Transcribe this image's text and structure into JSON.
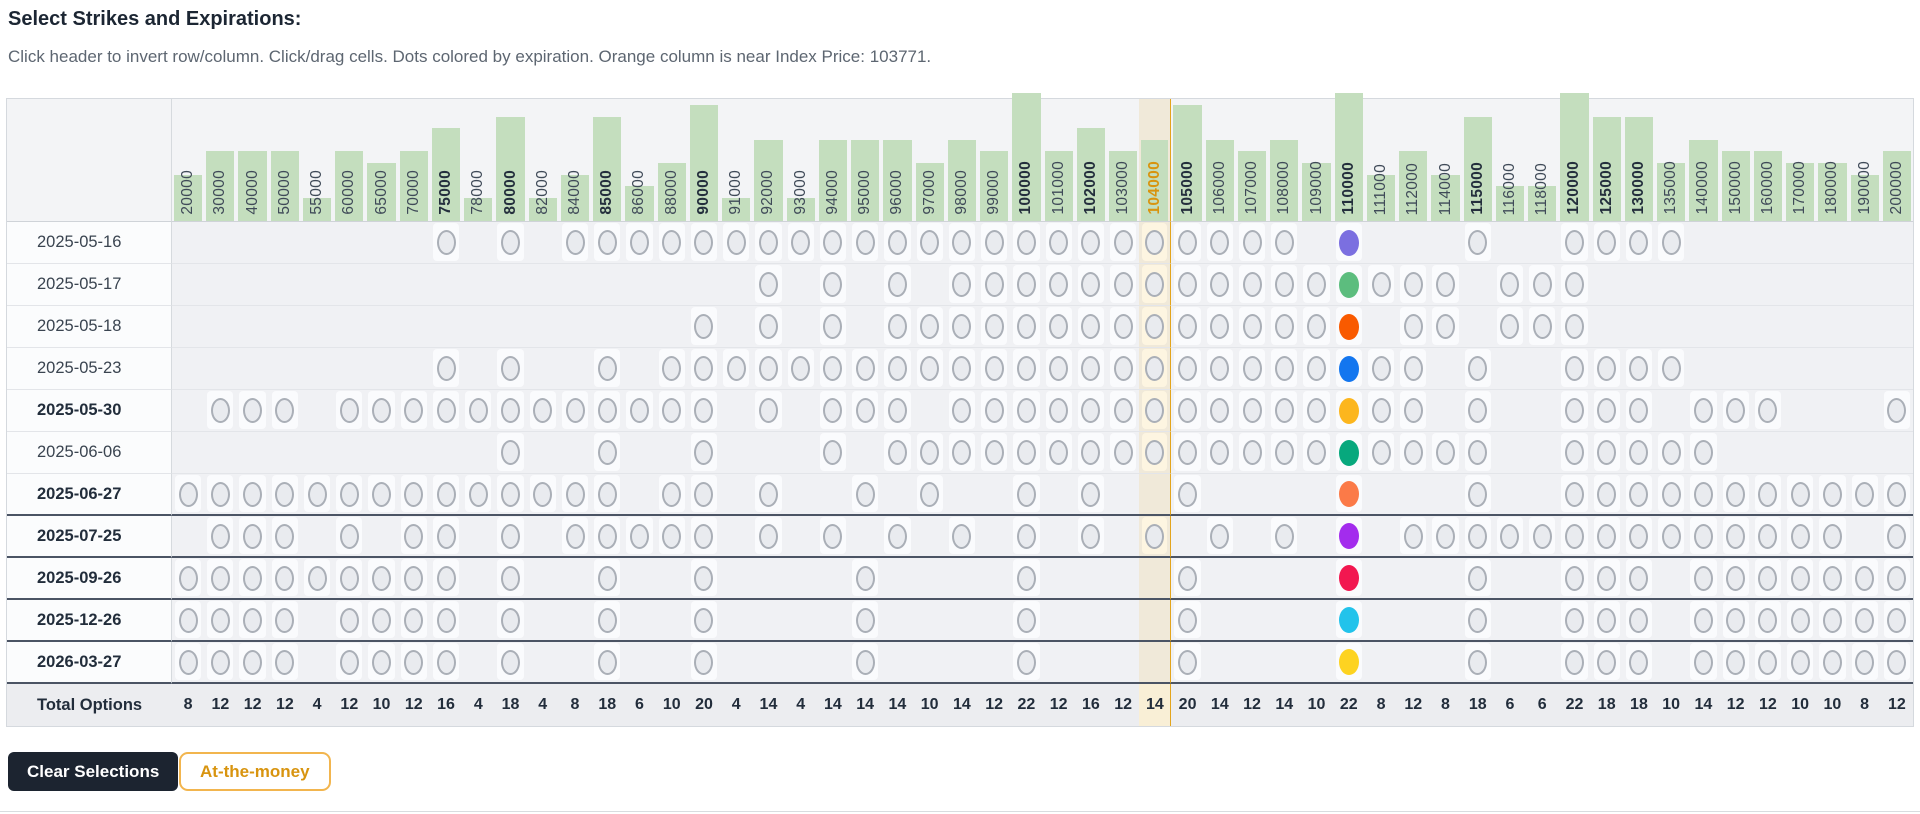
{
  "header": {
    "title": "Select Strikes and Expirations:",
    "subtitle": "Click header to invert row/column. Click/drag cells. Dots colored by expiration. Orange column is near Index Price: 103771.",
    "index_price": "103771"
  },
  "buttons": {
    "clear_label": "Clear Selections",
    "atm_label": "At-the-money"
  },
  "colors": {
    "bar_green": "#c4debe",
    "atm_column_tint": "#fbf3dd",
    "atm_accent": "#e3a41c",
    "atm_header_text": "#d8940f",
    "circle_fill": "#e9ebef",
    "circle_border": "#aaafb7",
    "thick_border": "#4b5464",
    "clear_button_bg": "#1c2430",
    "table_bg": "#f0f1f4"
  },
  "matrix": {
    "total_label": "Total Options",
    "atm_col": 30,
    "atm_strike": "104000",
    "strikes": [
      "20000",
      "30000",
      "40000",
      "50000",
      "55000",
      "60000",
      "65000",
      "70000",
      "75000",
      "78000",
      "80000",
      "82000",
      "84000",
      "85000",
      "86000",
      "88000",
      "90000",
      "91000",
      "92000",
      "93000",
      "94000",
      "95000",
      "96000",
      "97000",
      "98000",
      "99000",
      "100000",
      "101000",
      "102000",
      "103000",
      "104000",
      "105000",
      "106000",
      "107000",
      "108000",
      "109000",
      "110000",
      "111000",
      "112000",
      "114000",
      "115000",
      "116000",
      "118000",
      "120000",
      "125000",
      "130000",
      "135000",
      "140000",
      "150000",
      "160000",
      "170000",
      "180000",
      "190000",
      "200000"
    ],
    "bold_strikes": [
      "75000",
      "80000",
      "85000",
      "90000",
      "100000",
      "102000",
      "104000",
      "105000",
      "110000",
      "115000",
      "120000",
      "125000",
      "130000"
    ],
    "totals": [
      8,
      12,
      12,
      12,
      4,
      12,
      10,
      12,
      16,
      4,
      18,
      4,
      8,
      18,
      6,
      10,
      20,
      4,
      14,
      4,
      14,
      14,
      14,
      10,
      14,
      12,
      22,
      12,
      16,
      12,
      14,
      20,
      14,
      12,
      14,
      10,
      22,
      8,
      12,
      8,
      18,
      6,
      6,
      22,
      18,
      18,
      10,
      14,
      12,
      12,
      10,
      10,
      8,
      12
    ],
    "expirations": [
      {
        "date": "2025-05-16",
        "bold": false,
        "thick_below": false,
        "dot_col": 36,
        "dot_color": "#7b6fe0",
        "circles": [
          8,
          10,
          12,
          13,
          14,
          15,
          16,
          17,
          18,
          19,
          20,
          21,
          22,
          23,
          24,
          25,
          26,
          27,
          28,
          29,
          30,
          31,
          32,
          33,
          34,
          40,
          43,
          44,
          45,
          46
        ]
      },
      {
        "date": "2025-05-17",
        "bold": false,
        "thick_below": false,
        "dot_col": 36,
        "dot_color": "#5cbd7e",
        "circles": [
          18,
          20,
          22,
          24,
          25,
          26,
          27,
          28,
          29,
          30,
          31,
          32,
          33,
          34,
          35,
          37,
          38,
          39,
          41,
          42,
          43
        ]
      },
      {
        "date": "2025-05-18",
        "bold": false,
        "thick_below": false,
        "dot_col": 36,
        "dot_color": "#f95a00",
        "circles": [
          16,
          18,
          20,
          22,
          23,
          24,
          25,
          26,
          27,
          28,
          29,
          30,
          31,
          32,
          33,
          34,
          35,
          38,
          39,
          41,
          42,
          43
        ]
      },
      {
        "date": "2025-05-23",
        "bold": false,
        "thick_below": false,
        "dot_col": 36,
        "dot_color": "#1376ef",
        "circles": [
          8,
          10,
          13,
          15,
          16,
          17,
          18,
          19,
          20,
          21,
          22,
          23,
          24,
          25,
          26,
          27,
          28,
          29,
          30,
          31,
          32,
          33,
          34,
          35,
          37,
          38,
          40,
          43,
          44,
          45,
          46
        ]
      },
      {
        "date": "2025-05-30",
        "bold": true,
        "thick_below": false,
        "dot_col": 36,
        "dot_color": "#fcb61e",
        "circles": [
          1,
          2,
          3,
          5,
          6,
          7,
          8,
          9,
          10,
          11,
          12,
          13,
          14,
          15,
          16,
          18,
          20,
          21,
          22,
          24,
          25,
          26,
          27,
          28,
          29,
          30,
          31,
          32,
          33,
          34,
          35,
          37,
          38,
          40,
          43,
          44,
          45,
          47,
          48,
          49,
          53
        ]
      },
      {
        "date": "2025-06-06",
        "bold": false,
        "thick_below": false,
        "dot_col": 36,
        "dot_color": "#07a87d",
        "circles": [
          10,
          13,
          16,
          20,
          22,
          23,
          24,
          25,
          26,
          27,
          28,
          29,
          30,
          31,
          32,
          33,
          34,
          35,
          37,
          38,
          39,
          40,
          43,
          44,
          45,
          46,
          47
        ]
      },
      {
        "date": "2025-06-27",
        "bold": true,
        "thick_below": true,
        "dot_col": 36,
        "dot_color": "#fb7a48",
        "circles": [
          0,
          1,
          2,
          3,
          4,
          5,
          6,
          7,
          8,
          9,
          10,
          11,
          12,
          13,
          15,
          16,
          18,
          21,
          23,
          26,
          28,
          31,
          40,
          43,
          44,
          45,
          46,
          47,
          48,
          49,
          50,
          51,
          52,
          53
        ]
      },
      {
        "date": "2025-07-25",
        "bold": true,
        "thick_below": true,
        "dot_col": 36,
        "dot_color": "#a32ced",
        "circles": [
          1,
          2,
          3,
          5,
          7,
          8,
          10,
          12,
          13,
          14,
          15,
          16,
          18,
          20,
          22,
          24,
          26,
          28,
          30,
          32,
          34,
          38,
          39,
          40,
          41,
          42,
          43,
          44,
          45,
          46,
          47,
          48,
          49,
          50,
          51,
          53
        ]
      },
      {
        "date": "2025-09-26",
        "bold": true,
        "thick_below": true,
        "dot_col": 36,
        "dot_color": "#f21750",
        "circles": [
          0,
          1,
          2,
          3,
          4,
          5,
          6,
          7,
          8,
          10,
          13,
          16,
          21,
          26,
          31,
          40,
          43,
          44,
          45,
          47,
          48,
          49,
          50,
          51,
          52,
          53
        ]
      },
      {
        "date": "2025-12-26",
        "bold": true,
        "thick_below": true,
        "dot_col": 36,
        "dot_color": "#22c3eb",
        "circles": [
          0,
          1,
          2,
          3,
          5,
          6,
          7,
          8,
          10,
          13,
          16,
          21,
          26,
          31,
          40,
          43,
          44,
          45,
          47,
          48,
          49,
          50,
          51,
          52,
          53
        ]
      },
      {
        "date": "2026-03-27",
        "bold": true,
        "thick_below": true,
        "dot_col": 36,
        "dot_color": "#fdd321",
        "circles": [
          0,
          1,
          2,
          3,
          5,
          6,
          7,
          8,
          10,
          13,
          16,
          21,
          26,
          31,
          40,
          43,
          44,
          45,
          47,
          48,
          49,
          50,
          51,
          52,
          53
        ]
      }
    ]
  }
}
